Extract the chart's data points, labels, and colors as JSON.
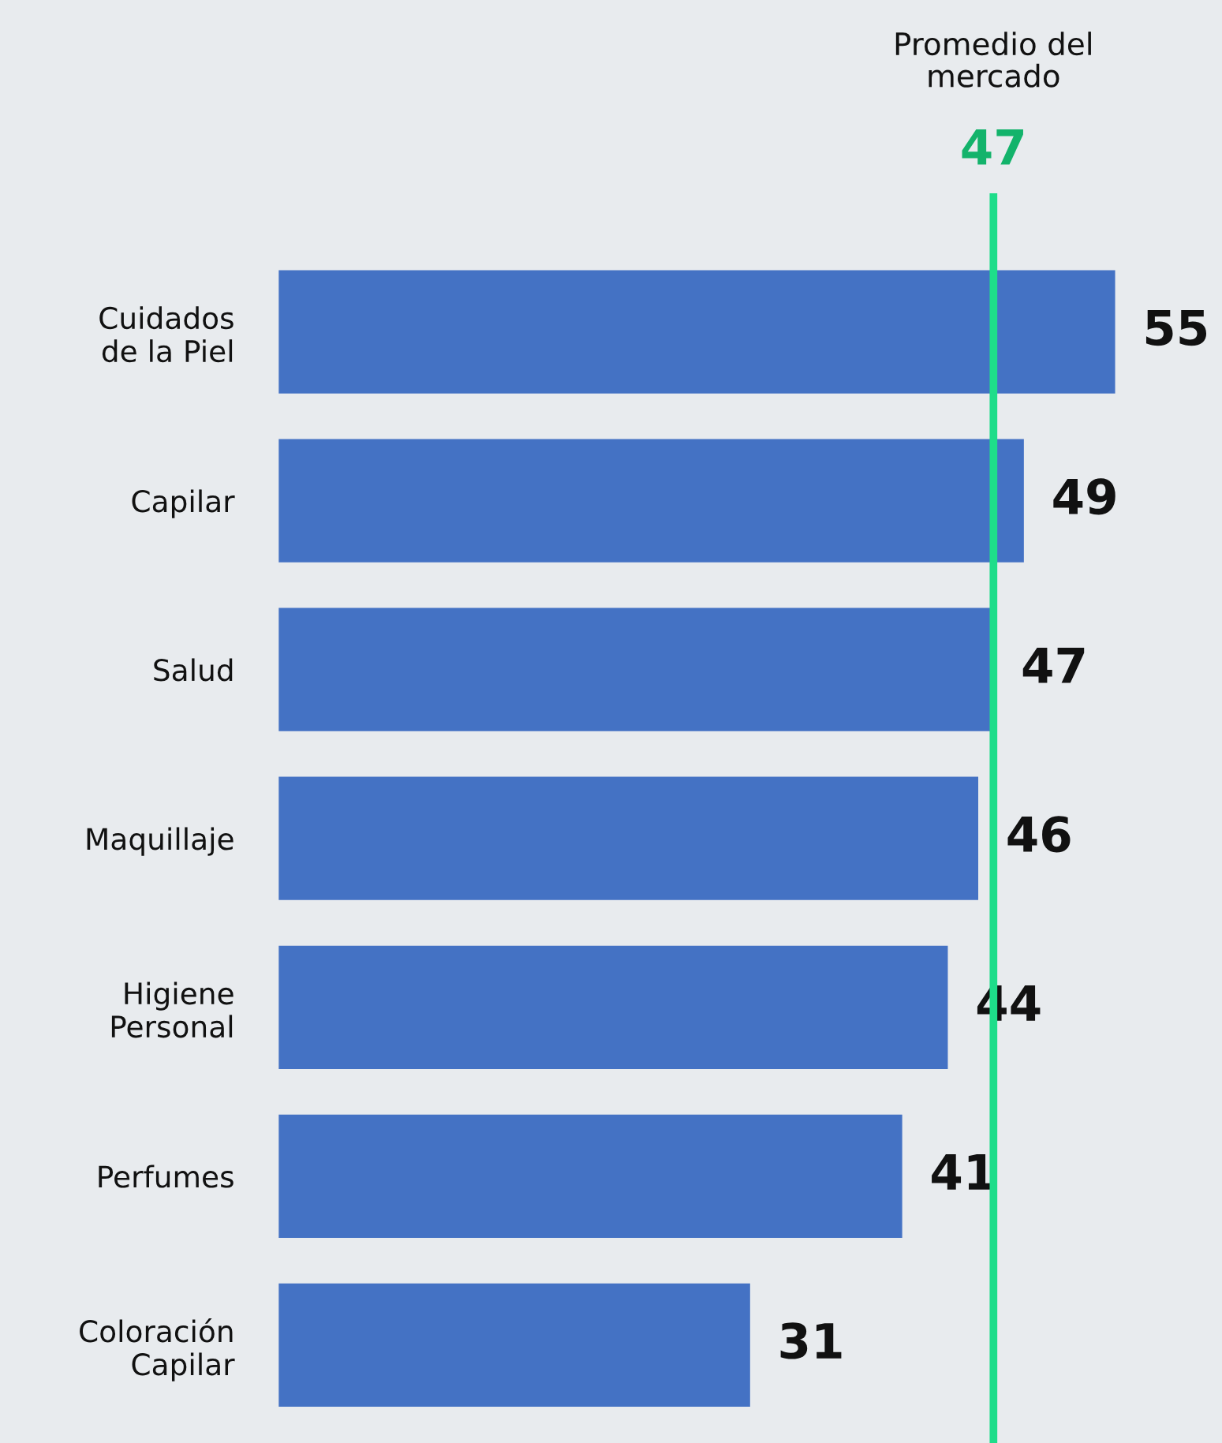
{
  "chart_data": {
    "type": "bar",
    "orientation": "horizontal",
    "categories": [
      "Cuidados\nde la Piel",
      "Capilar",
      "Salud",
      "Maquillaje",
      "Higiene\nPersonal",
      "Perfumes",
      "Coloración\nCapilar"
    ],
    "values": [
      55,
      49,
      47,
      46,
      44,
      41,
      31
    ],
    "color": "#4472c4",
    "data_labels": true,
    "ref_lines": [
      {
        "axis": "x",
        "value": 47,
        "label": "47",
        "color": "#1edd8a"
      }
    ],
    "annotations": [
      "Promedio del\nmercado"
    ]
  }
}
